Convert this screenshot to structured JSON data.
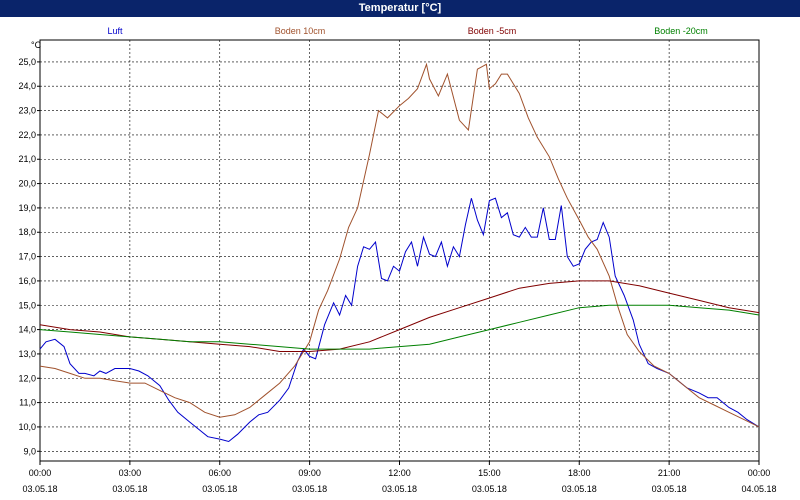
{
  "window": {
    "title": "Temperatur [°C]"
  },
  "chart_data": {
    "type": "line",
    "title": "Temperatur [°C]",
    "ylabel": "°C",
    "xlabel": "",
    "ylim": [
      8.6,
      25.9
    ],
    "xlim": [
      0,
      24
    ],
    "grid": true,
    "legend_placement": "top",
    "y_ticks": [
      9.0,
      10.0,
      11.0,
      12.0,
      13.0,
      14.0,
      15.0,
      16.0,
      17.0,
      18.0,
      19.0,
      20.0,
      21.0,
      22.0,
      23.0,
      24.0,
      25.0
    ],
    "y_tick_labels": [
      "9,0",
      "10,0",
      "11,0",
      "12,0",
      "13,0",
      "14,0",
      "15,0",
      "16,0",
      "17,0",
      "18,0",
      "19,0",
      "20,0",
      "21,0",
      "22,0",
      "23,0",
      "24,0",
      "25,0"
    ],
    "x_ticks": [
      0,
      3,
      6,
      9,
      12,
      15,
      18,
      21,
      24
    ],
    "x_tick_labels": [
      [
        "00:00",
        "03.05.18"
      ],
      [
        "03:00",
        "03.05.18"
      ],
      [
        "06:00",
        "03.05.18"
      ],
      [
        "09:00",
        "03.05.18"
      ],
      [
        "12:00",
        "03.05.18"
      ],
      [
        "15:00",
        "03.05.18"
      ],
      [
        "18:00",
        "03.05.18"
      ],
      [
        "21:00",
        "03.05.18"
      ],
      [
        "00:00",
        "04.05.18"
      ]
    ],
    "series": [
      {
        "name": "Luft",
        "color": "#0000cc",
        "x": [
          0,
          0.2,
          0.5,
          0.8,
          1.0,
          1.3,
          1.5,
          1.8,
          2.0,
          2.2,
          2.5,
          2.8,
          3.0,
          3.3,
          3.6,
          4.0,
          4.3,
          4.6,
          5.0,
          5.3,
          5.6,
          6.0,
          6.3,
          6.6,
          7.0,
          7.3,
          7.6,
          8.0,
          8.3,
          8.6,
          8.8,
          9.0,
          9.2,
          9.5,
          9.8,
          10.0,
          10.2,
          10.4,
          10.6,
          10.8,
          11.0,
          11.2,
          11.4,
          11.6,
          11.8,
          12.0,
          12.2,
          12.4,
          12.6,
          12.8,
          13.0,
          13.2,
          13.4,
          13.6,
          13.8,
          14.0,
          14.2,
          14.4,
          14.6,
          14.8,
          15.0,
          15.2,
          15.4,
          15.6,
          15.8,
          16.0,
          16.2,
          16.4,
          16.6,
          16.8,
          17.0,
          17.2,
          17.4,
          17.6,
          17.8,
          18.0,
          18.2,
          18.4,
          18.6,
          18.8,
          19.0,
          19.2,
          19.5,
          19.8,
          20.0,
          20.3,
          20.6,
          21.0,
          21.3,
          21.6,
          22.0,
          22.3,
          22.6,
          23.0,
          23.3,
          23.6,
          24.0
        ],
        "y": [
          13.2,
          13.5,
          13.6,
          13.3,
          12.6,
          12.2,
          12.2,
          12.1,
          12.3,
          12.2,
          12.4,
          12.4,
          12.4,
          12.3,
          12.1,
          11.7,
          11.1,
          10.6,
          10.2,
          9.9,
          9.6,
          9.5,
          9.4,
          9.7,
          10.2,
          10.5,
          10.6,
          11.1,
          11.6,
          12.7,
          13.2,
          12.9,
          12.8,
          14.2,
          15.1,
          14.6,
          15.4,
          15.0,
          16.6,
          17.4,
          17.3,
          17.6,
          16.1,
          16.0,
          16.6,
          16.4,
          17.2,
          17.6,
          16.6,
          17.8,
          17.1,
          17.0,
          17.6,
          16.6,
          17.4,
          17.0,
          18.3,
          19.4,
          18.5,
          17.9,
          19.3,
          19.4,
          18.6,
          18.8,
          17.9,
          17.8,
          18.2,
          17.8,
          17.8,
          19.0,
          17.7,
          17.7,
          19.1,
          17.0,
          16.6,
          16.7,
          17.3,
          17.6,
          17.7,
          18.4,
          17.8,
          16.2,
          15.4,
          14.4,
          13.4,
          12.6,
          12.4,
          12.2,
          11.9,
          11.6,
          11.4,
          11.2,
          11.2,
          10.8,
          10.6,
          10.3,
          10.0
        ]
      },
      {
        "name": "Boden 10cm",
        "color": "#a0522d",
        "x": [
          0,
          0.5,
          1.0,
          1.5,
          2.0,
          2.5,
          3.0,
          3.5,
          4.0,
          4.5,
          5.0,
          5.5,
          6.0,
          6.5,
          7.0,
          7.5,
          8.0,
          8.5,
          9.0,
          9.3,
          9.6,
          10.0,
          10.3,
          10.6,
          11.0,
          11.3,
          11.6,
          12.0,
          12.3,
          12.6,
          12.9,
          13.0,
          13.3,
          13.6,
          14.0,
          14.3,
          14.6,
          14.9,
          15.0,
          15.2,
          15.4,
          15.6,
          15.8,
          16.0,
          16.3,
          16.6,
          17.0,
          17.3,
          17.6,
          18.0,
          18.3,
          18.6,
          19.0,
          19.3,
          19.6,
          20.0,
          20.5,
          21.0,
          21.5,
          22.0,
          22.5,
          23.0,
          23.5,
          24.0
        ],
        "y": [
          12.5,
          12.4,
          12.2,
          12.0,
          12.0,
          11.9,
          11.8,
          11.8,
          11.5,
          11.2,
          11.0,
          10.6,
          10.4,
          10.5,
          10.8,
          11.3,
          11.8,
          12.5,
          13.5,
          14.8,
          15.6,
          16.9,
          18.2,
          19.0,
          21.2,
          23.0,
          22.7,
          23.2,
          23.5,
          23.9,
          24.9,
          24.3,
          23.6,
          24.5,
          22.6,
          22.2,
          24.7,
          24.9,
          23.9,
          24.1,
          24.5,
          24.5,
          24.1,
          23.7,
          22.7,
          21.9,
          21.1,
          20.2,
          19.4,
          18.5,
          17.8,
          17.3,
          16.2,
          14.9,
          13.8,
          13.1,
          12.5,
          12.2,
          11.7,
          11.2,
          10.9,
          10.6,
          10.3,
          10.0
        ]
      },
      {
        "name": "Boden -5cm",
        "color": "#800000",
        "x": [
          0,
          1,
          2,
          3,
          4,
          5,
          6,
          7,
          8,
          9,
          10,
          11,
          12,
          13,
          14,
          15,
          16,
          17,
          18,
          19,
          20,
          21,
          22,
          23,
          24
        ],
        "y": [
          14.2,
          14.0,
          13.9,
          13.7,
          13.6,
          13.5,
          13.4,
          13.3,
          13.1,
          13.1,
          13.2,
          13.5,
          14.0,
          14.5,
          14.9,
          15.3,
          15.7,
          15.9,
          16.0,
          16.0,
          15.8,
          15.5,
          15.2,
          14.9,
          14.7
        ]
      },
      {
        "name": "Boden -20cm",
        "color": "#008000",
        "x": [
          0,
          1,
          2,
          3,
          4,
          5,
          6,
          7,
          8,
          9,
          10,
          11,
          12,
          13,
          14,
          15,
          16,
          17,
          18,
          19,
          20,
          21,
          22,
          23,
          24
        ],
        "y": [
          14.0,
          13.9,
          13.8,
          13.7,
          13.6,
          13.5,
          13.5,
          13.4,
          13.3,
          13.2,
          13.2,
          13.2,
          13.3,
          13.4,
          13.7,
          14.0,
          14.3,
          14.6,
          14.9,
          15.0,
          15.0,
          15.0,
          14.9,
          14.8,
          14.6
        ]
      }
    ]
  }
}
